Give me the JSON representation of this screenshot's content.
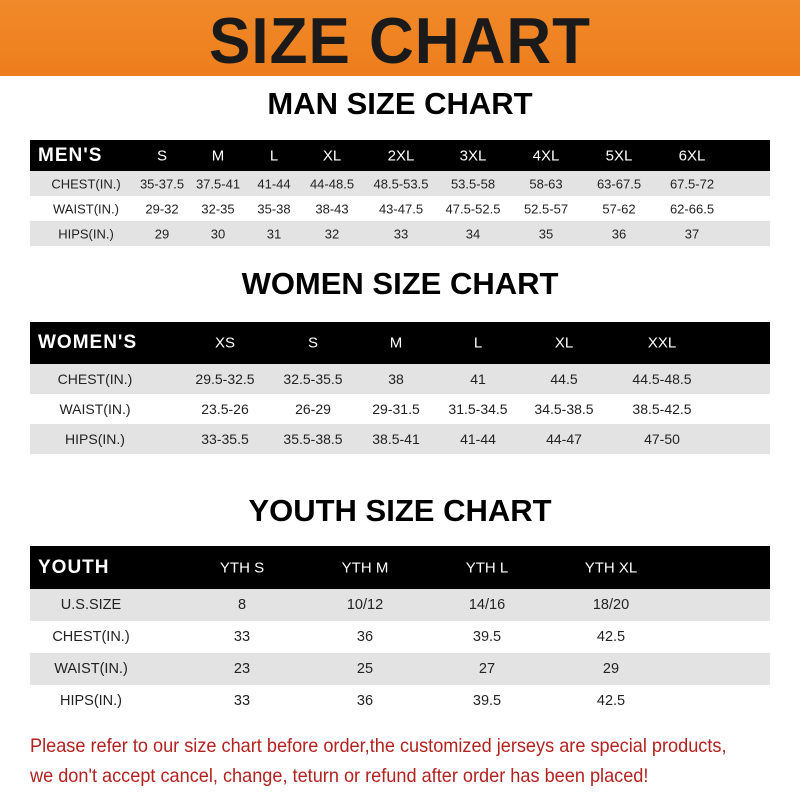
{
  "banner": {
    "title": "SIZE CHART",
    "color": "#ee7d1c"
  },
  "men": {
    "title": "MAN SIZE CHART",
    "label": "MEN'S",
    "sizes": [
      "S",
      "M",
      "L",
      "XL",
      "2XL",
      "3XL",
      "4XL",
      "5XL",
      "6XL"
    ],
    "rows": [
      {
        "label": "CHEST(IN.)",
        "values": [
          "35-37.5",
          "37.5-41",
          "41-44",
          "44-48.5",
          "48.5-53.5",
          "53.5-58",
          "58-63",
          "63-67.5",
          "67.5-72"
        ]
      },
      {
        "label": "WAIST(IN.)",
        "values": [
          "29-32",
          "32-35",
          "35-38",
          "38-43",
          "43-47.5",
          "47.5-52.5",
          "52.5-57",
          "57-62",
          "62-66.5"
        ]
      },
      {
        "label": "HIPS(IN.)",
        "values": [
          "29",
          "30",
          "31",
          "32",
          "33",
          "34",
          "35",
          "36",
          "37"
        ]
      }
    ]
  },
  "women": {
    "title": "WOMEN SIZE CHART",
    "label": "WOMEN'S",
    "sizes": [
      "XS",
      "S",
      "M",
      "L",
      "XL",
      "XXL"
    ],
    "rows": [
      {
        "label": "CHEST(IN.)",
        "values": [
          "29.5-32.5",
          "32.5-35.5",
          "38",
          "41",
          "44.5",
          "44.5-48.5"
        ]
      },
      {
        "label": "WAIST(IN.)",
        "values": [
          "23.5-26",
          "26-29",
          "29-31.5",
          "31.5-34.5",
          "34.5-38.5",
          "38.5-42.5"
        ]
      },
      {
        "label": "HIPS(IN.)",
        "values": [
          "33-35.5",
          "35.5-38.5",
          "38.5-41",
          "41-44",
          "44-47",
          "47-50"
        ]
      }
    ]
  },
  "youth": {
    "title": "YOUTH SIZE CHART",
    "label": "YOUTH",
    "sizes": [
      "YTH S",
      "YTH M",
      "YTH L",
      "YTH XL"
    ],
    "rows": [
      {
        "label": "U.S.SIZE",
        "values": [
          "8",
          "10/12",
          "14/16",
          "18/20"
        ]
      },
      {
        "label": "CHEST(IN.)",
        "values": [
          "33",
          "36",
          "39.5",
          "42.5"
        ]
      },
      {
        "label": "WAIST(IN.)",
        "values": [
          "23",
          "25",
          "27",
          "29"
        ]
      },
      {
        "label": "HIPS(IN.)",
        "values": [
          "33",
          "36",
          "39.5",
          "42.5"
        ]
      }
    ]
  },
  "notice": {
    "line1": "Please refer to our size chart before order,the customized jerseys are special products,",
    "line2": "we don't accept cancel, change, teturn or refund after order has been placed!",
    "color": "#b2221f"
  }
}
